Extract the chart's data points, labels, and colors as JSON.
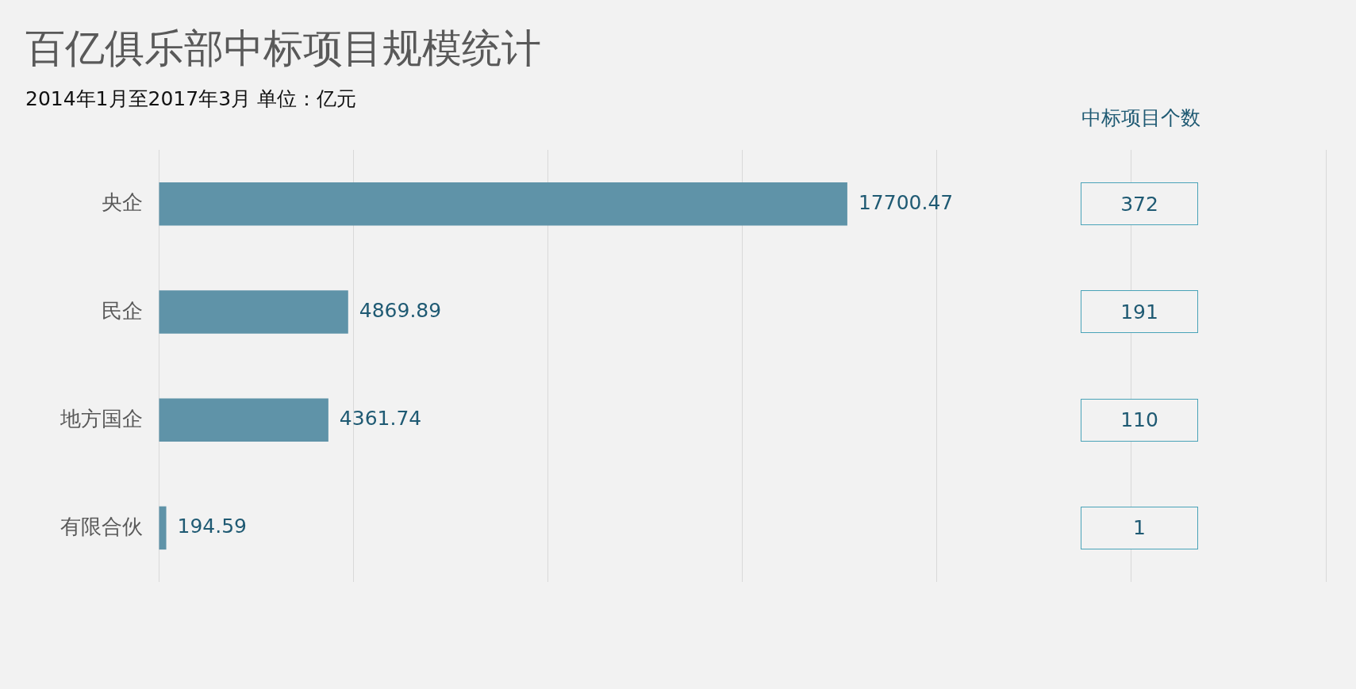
{
  "chart_data": [
    {
      "type": "bar",
      "title": "百亿俱乐部中标项目规模统计",
      "subtitle": "2014年1月至2017年3月  单位：亿元",
      "orientation": "horizontal",
      "categories": [
        "央企",
        "民企",
        "地方国企",
        "有限合伙"
      ],
      "values": [
        17700.47,
        4869.89,
        4361.74,
        194.59
      ],
      "data_labels": true,
      "color": "#5f93a8",
      "xlim": [
        0,
        30000
      ],
      "xticks": [
        {
          "value": 0,
          "label": null
        },
        {
          "value": 5000,
          "label": null
        },
        {
          "value": 10000,
          "label": null
        },
        {
          "value": 15000,
          "label": null
        },
        {
          "value": 20000,
          "label": null
        },
        {
          "value": 25000,
          "label": null
        },
        {
          "value": 30000,
          "label": null
        }
      ],
      "grid": "x",
      "tick_labels": "y"
    },
    {
      "type": "other",
      "title": "中标项目个数",
      "values": [
        372,
        191,
        110,
        1
      ],
      "data_labels": true
    }
  ]
}
